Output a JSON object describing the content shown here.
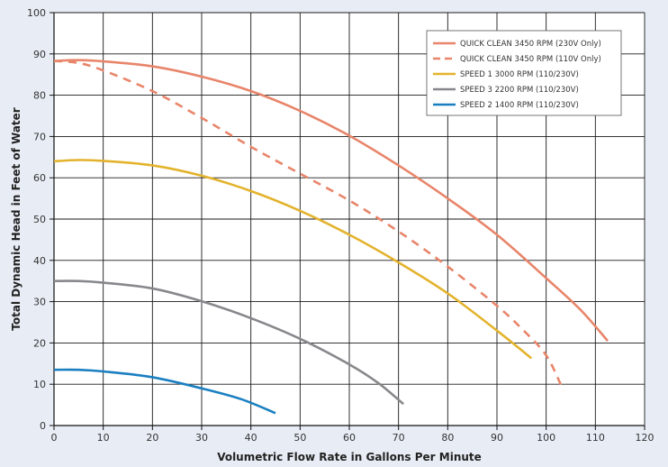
{
  "chart_data": {
    "type": "line",
    "xlabel": "Volumetric Flow Rate in Gallons Per Minute",
    "ylabel": "Total Dynamic Head in Feet of Water",
    "xlim": [
      0,
      120
    ],
    "ylim": [
      0,
      100
    ],
    "xticks": [
      0,
      10,
      20,
      30,
      40,
      50,
      60,
      70,
      80,
      90,
      100,
      110,
      120
    ],
    "yticks": [
      0,
      10,
      20,
      30,
      40,
      50,
      60,
      70,
      80,
      90,
      100
    ],
    "grid": true,
    "legend_position": "top-right",
    "series": [
      {
        "name": "QUICK CLEAN 3450 RPM (230V Only)",
        "color": "#e8856a",
        "dash": "solid",
        "points": [
          [
            0,
            88.3
          ],
          [
            5,
            88.5
          ],
          [
            10,
            88.2
          ],
          [
            20,
            87
          ],
          [
            30,
            84.5
          ],
          [
            40,
            81
          ],
          [
            50,
            76.2
          ],
          [
            60,
            70.2
          ],
          [
            70,
            63
          ],
          [
            80,
            55
          ],
          [
            90,
            46.2
          ],
          [
            100,
            35.7
          ],
          [
            107,
            28
          ],
          [
            112.5,
            20.5
          ]
        ]
      },
      {
        "name": "QUICK CLEAN 3450 RPM (110V Only)",
        "color": "#e8856a",
        "dash": "dashed",
        "points": [
          [
            0,
            88.3
          ],
          [
            5,
            87.8
          ],
          [
            10,
            86
          ],
          [
            20,
            81
          ],
          [
            30,
            74.5
          ],
          [
            40,
            67.5
          ],
          [
            50,
            61
          ],
          [
            60,
            54.5
          ],
          [
            70,
            47
          ],
          [
            80,
            38.5
          ],
          [
            90,
            29
          ],
          [
            95,
            23.5
          ],
          [
            100,
            17
          ],
          [
            103.5,
            8.5
          ]
        ]
      },
      {
        "name": "SPEED 1 3000 RPM (110/230V)",
        "color": "#e3b32d",
        "dash": "solid",
        "points": [
          [
            0,
            64
          ],
          [
            5,
            64.3
          ],
          [
            10,
            64.1
          ],
          [
            20,
            63
          ],
          [
            30,
            60.5
          ],
          [
            40,
            56.8
          ],
          [
            50,
            52
          ],
          [
            60,
            46.2
          ],
          [
            70,
            39.5
          ],
          [
            80,
            32
          ],
          [
            90,
            23
          ],
          [
            97,
            16.3
          ]
        ]
      },
      {
        "name": "SPEED 3 2200 RPM (110/230V)",
        "color": "#87888b",
        "dash": "solid",
        "points": [
          [
            0,
            35
          ],
          [
            5,
            35
          ],
          [
            10,
            34.6
          ],
          [
            20,
            33.2
          ],
          [
            30,
            30.1
          ],
          [
            40,
            26
          ],
          [
            50,
            21
          ],
          [
            60,
            14.8
          ],
          [
            66,
            10.2
          ],
          [
            71,
            5.2
          ]
        ]
      },
      {
        "name": "SPEED 2 1400 RPM (110/230V)",
        "color": "#1a7fc1",
        "dash": "solid",
        "points": [
          [
            0,
            13.5
          ],
          [
            5,
            13.5
          ],
          [
            10,
            13.1
          ],
          [
            20,
            11.7
          ],
          [
            30,
            9
          ],
          [
            38,
            6.4
          ],
          [
            45,
            3
          ]
        ]
      }
    ]
  }
}
